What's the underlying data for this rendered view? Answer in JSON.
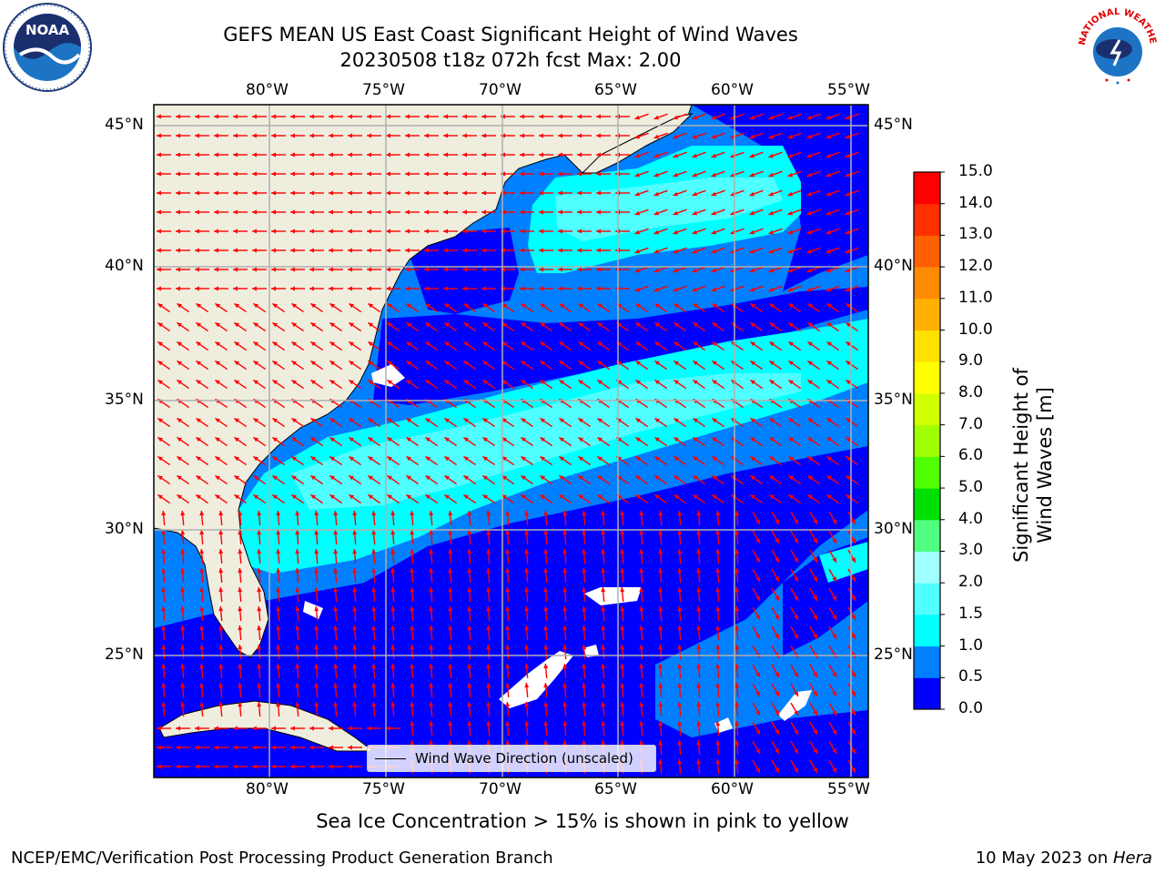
{
  "title": {
    "line1": "GEFS MEAN US East Coast Significant Height of Wind Waves",
    "line2": "20230508 t18z 072h fcst   Max: 2.00"
  },
  "logos": {
    "left": "NOAA",
    "right": "NATIONAL WEATHER SERVICE"
  },
  "map": {
    "lon_labels": [
      "80°W",
      "75°W",
      "70°W",
      "65°W",
      "60°W",
      "55°W"
    ],
    "lat_labels": [
      "45°N",
      "40°N",
      "35°N",
      "30°N",
      "25°N"
    ],
    "legend_label": "Wind Wave Direction (unscaled)",
    "arrow_color": "#ff0000",
    "land_color": "#efedde"
  },
  "colorbar": {
    "label": "Significant Height of Wind Waves [m]",
    "ticks": [
      "15.0",
      "14.0",
      "13.0",
      "12.0",
      "11.0",
      "10.0",
      "9.0",
      "8.0",
      "7.0",
      "6.0",
      "5.0",
      "4.0",
      "3.0",
      "2.0",
      "1.5",
      "1.0",
      "0.5",
      "0.0"
    ],
    "colors": [
      "#0000ff",
      "#0080ff",
      "#00ffff",
      "#50ffff",
      "#a0ffff",
      "#50ff80",
      "#00e000",
      "#50ff00",
      "#a0ff00",
      "#d0ff00",
      "#ffff00",
      "#ffe000",
      "#ffb000",
      "#ff8c00",
      "#ff6000",
      "#ff3000",
      "#ff0000"
    ]
  },
  "chart_data": {
    "type": "heatmap",
    "title": "GEFS MEAN US East Coast Significant Height of Wind Waves",
    "subtitle": "20230508 t18z 072h fcst   Max: 2.00",
    "xlim": [
      -85,
      -54
    ],
    "ylim": [
      20.3,
      45.9
    ],
    "colorbar_levels": [
      0.0,
      0.5,
      1.0,
      1.5,
      2.0,
      3.0,
      4.0,
      5.0,
      6.0,
      7.0,
      8.0,
      9.0,
      10.0,
      11.0,
      12.0,
      13.0,
      14.0,
      15.0
    ],
    "regions": [
      {
        "value_range": "0.0-0.5",
        "area": "open ocean background"
      },
      {
        "value_range": "1.0-1.5",
        "area": "band 28N-38N from Florida to 55W"
      },
      {
        "value_range": "1.0-1.5",
        "area": "cell 40N-44N, 68W-58W"
      },
      {
        "value_range": "1.5-2.0",
        "area": "core 31N-35N and 41N-43N"
      }
    ],
    "max": 2.0
  },
  "notes": {
    "ice": "Sea Ice Concentration > 15% is shown in pink to yellow"
  },
  "footer": {
    "left": "NCEP/EMC/Verification Post Processing Product Generation Branch",
    "right_prefix": "10 May 2023 on ",
    "right_machine": "Hera"
  }
}
